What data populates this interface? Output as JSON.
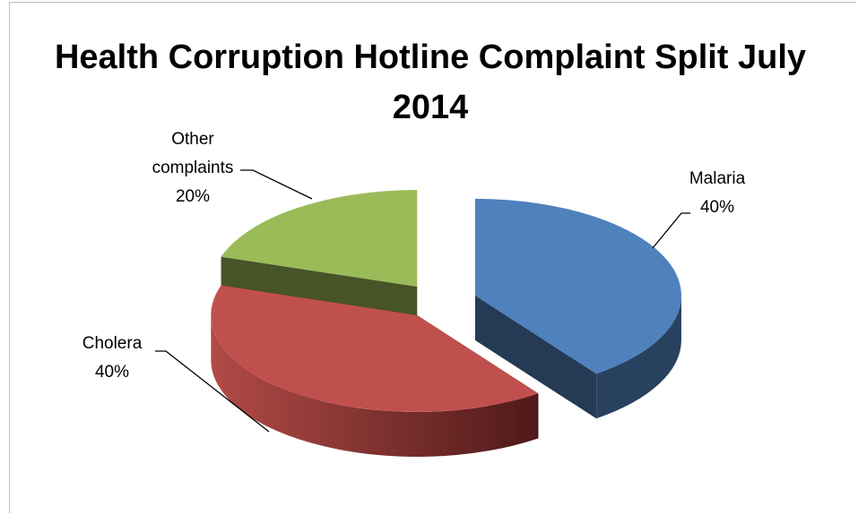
{
  "chart_data": {
    "type": "pie3d",
    "title": "Health Corruption Hotline Complaint Split July 2014",
    "categories": [
      "Malaria",
      "Cholera",
      "Other complaints"
    ],
    "values": [
      40,
      40,
      20
    ],
    "value_labels": [
      "40%",
      "40%",
      "20%"
    ],
    "colors": [
      "#4f81bd",
      "#c0504d",
      "#9bbb59"
    ],
    "exploded": true
  }
}
